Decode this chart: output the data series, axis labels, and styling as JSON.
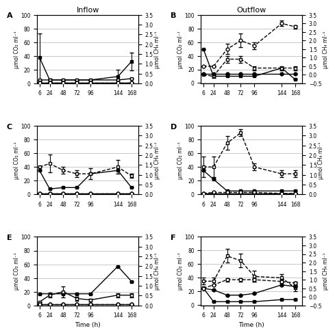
{
  "time": [
    6,
    24,
    48,
    72,
    96,
    144,
    168
  ],
  "panels": {
    "A": {
      "label": "A",
      "co2_on": [
        38,
        5,
        5,
        5,
        5,
        10,
        32
      ],
      "co2_on_err": [
        35,
        2,
        1,
        1,
        1,
        10,
        13
      ],
      "co2_off": [
        5,
        5,
        5,
        5,
        5,
        5,
        7
      ],
      "co2_off_err": [
        0,
        0,
        0,
        0,
        0,
        0,
        0
      ],
      "ch4_on": [
        0.05,
        0.05,
        0.05,
        0.05,
        0.05,
        0.05,
        0.05
      ],
      "ch4_on_err": [
        0,
        0,
        0,
        0,
        0,
        0,
        0
      ],
      "ch4_off": [
        0.05,
        0.05,
        0.05,
        0.05,
        0.05,
        0.05,
        0.05
      ],
      "ch4_off_err": [
        0,
        0,
        0,
        0,
        0,
        0,
        0
      ],
      "co2_on_dashed": false,
      "co2_off_dashed": false,
      "ylim_co2": [
        0,
        100
      ],
      "ylim_ch4": [
        0,
        3.5
      ],
      "yticks_co2": [
        0,
        20,
        40,
        60,
        80,
        100
      ],
      "yticks_ch4": [
        0,
        0.5,
        1.0,
        1.5,
        2.0,
        2.5,
        3.0,
        3.5
      ]
    },
    "B": {
      "label": "B",
      "co2_on": [
        50,
        10,
        10,
        10,
        10,
        22,
        5
      ],
      "co2_on_err": [
        0,
        0,
        0,
        0,
        0,
        0,
        0
      ],
      "co2_off": [
        12,
        10,
        35,
        35,
        22,
        22,
        22
      ],
      "co2_off_err": [
        0,
        3,
        5,
        5,
        3,
        3,
        3
      ],
      "ch4_on": [
        0.05,
        0.05,
        0.05,
        0.05,
        0.05,
        0.05,
        0.05
      ],
      "ch4_on_err": [
        0,
        0,
        0,
        0,
        0,
        0,
        0
      ],
      "ch4_off": [
        0.5,
        0.5,
        1.5,
        2.0,
        1.7,
        3.0,
        2.8
      ],
      "ch4_off_err": [
        0,
        0,
        0.3,
        0.4,
        0.2,
        0.15,
        0.1
      ],
      "co2_on_dashed": false,
      "co2_off_dashed": true,
      "ylim_co2": [
        -0.5,
        100
      ],
      "ylim_ch4": [
        -0.5,
        3.5
      ],
      "yticks_co2": [
        0,
        20,
        40,
        60,
        80,
        100
      ],
      "yticks_ch4": [
        -0.5,
        0,
        0.5,
        1.0,
        1.5,
        2.0,
        2.5,
        3.0,
        3.5
      ]
    },
    "C": {
      "label": "C",
      "co2_on": [
        35,
        8,
        10,
        10,
        30,
        35,
        10
      ],
      "co2_on_err": [
        0,
        0,
        0,
        0,
        0,
        0,
        0
      ],
      "co2_off": [
        40,
        45,
        35,
        30,
        30,
        40,
        27
      ],
      "co2_off_err": [
        0,
        13,
        5,
        5,
        8,
        10,
        3
      ],
      "ch4_on": [
        0.05,
        0.05,
        0.05,
        0.05,
        0.05,
        0.05,
        0.05
      ],
      "ch4_on_err": [
        0,
        0,
        0,
        0,
        0,
        0,
        0
      ],
      "ch4_off": [
        0.05,
        0.05,
        0.05,
        0.05,
        0.05,
        0.05,
        0.05
      ],
      "ch4_off_err": [
        0,
        0,
        0,
        0,
        0,
        0,
        0
      ],
      "co2_on_dashed": false,
      "co2_off_dashed": true,
      "ylim_co2": [
        0,
        100
      ],
      "ylim_ch4": [
        0,
        3.5
      ],
      "yticks_co2": [
        0,
        20,
        40,
        60,
        80,
        100
      ],
      "yticks_ch4": [
        0,
        0.5,
        1.0,
        1.5,
        2.0,
        2.5,
        3.0,
        3.5
      ]
    },
    "D": {
      "label": "D",
      "co2_on": [
        35,
        22,
        5,
        5,
        5,
        5,
        5
      ],
      "co2_on_err": [
        0,
        0,
        0,
        0,
        0,
        0,
        0
      ],
      "co2_off": [
        40,
        40,
        75,
        90,
        40,
        30,
        30
      ],
      "co2_off_err": [
        15,
        15,
        10,
        5,
        5,
        5,
        5
      ],
      "ch4_on": [
        0.05,
        0.05,
        0.05,
        0.05,
        0.05,
        0.05,
        0.05
      ],
      "ch4_on_err": [
        0,
        0,
        0,
        0,
        0,
        0,
        0
      ],
      "ch4_off": [
        0.05,
        0.1,
        0.1,
        0.1,
        0.1,
        0.05,
        0.05
      ],
      "ch4_off_err": [
        0,
        0,
        0,
        0,
        0,
        0,
        0
      ],
      "co2_on_dashed": false,
      "co2_off_dashed": true,
      "ylim_co2": [
        0,
        100
      ],
      "ylim_ch4": [
        0,
        3.5
      ],
      "yticks_co2": [
        0,
        20,
        40,
        60,
        80,
        100
      ],
      "yticks_ch4": [
        0,
        0.5,
        1.0,
        1.5,
        2.0,
        2.5,
        3.0,
        3.5
      ]
    },
    "E": {
      "label": "E",
      "co2_on": [
        17,
        17,
        17,
        17,
        17,
        57,
        35
      ],
      "co2_on_err": [
        0,
        0,
        0,
        0,
        0,
        0,
        0
      ],
      "co2_off": [
        5,
        15,
        20,
        10,
        8,
        15,
        15
      ],
      "co2_off_err": [
        0,
        3,
        8,
        3,
        2,
        3,
        3
      ],
      "ch4_on": [
        0.05,
        0.05,
        0.05,
        0.05,
        0.05,
        0.05,
        0.05
      ],
      "ch4_on_err": [
        0,
        0,
        0,
        0,
        0,
        0,
        0
      ],
      "ch4_off": [
        0.05,
        0.05,
        0.05,
        0.05,
        0.05,
        0.05,
        0.05
      ],
      "ch4_off_err": [
        0,
        0,
        0,
        0,
        0,
        0,
        0
      ],
      "co2_on_dashed": false,
      "co2_off_dashed": false,
      "ylim_co2": [
        0,
        100
      ],
      "ylim_ch4": [
        0,
        3.5
      ],
      "yticks_co2": [
        0,
        20,
        40,
        60,
        80,
        100
      ],
      "yticks_ch4": [
        0,
        0.5,
        1.0,
        1.5,
        2.0,
        2.5,
        3.0,
        3.5
      ]
    },
    "F": {
      "label": "F",
      "co2_on": [
        25,
        5,
        5,
        5,
        5,
        8,
        8
      ],
      "co2_on_err": [
        0,
        0,
        0,
        0,
        0,
        0,
        0
      ],
      "co2_off": [
        35,
        35,
        72,
        65,
        42,
        40,
        25
      ],
      "co2_off_err": [
        5,
        5,
        10,
        10,
        8,
        5,
        5
      ],
      "ch4_on": [
        0.5,
        0.4,
        0.1,
        0.1,
        0.2,
        0.7,
        0.6
      ],
      "ch4_on_err": [
        0,
        0,
        0,
        0,
        0,
        0,
        0
      ],
      "ch4_off": [
        0.5,
        0.7,
        1.0,
        1.0,
        1.0,
        0.9,
        0.8
      ],
      "ch4_off_err": [
        0,
        0,
        0.1,
        0.1,
        0.1,
        0.1,
        0.1
      ],
      "co2_on_dashed": false,
      "co2_off_dashed": true,
      "ylim_co2": [
        -0.5,
        100
      ],
      "ylim_ch4": [
        -0.5,
        3.5
      ],
      "yticks_co2": [
        0,
        20,
        40,
        60,
        80,
        100
      ],
      "yticks_ch4": [
        -0.5,
        0,
        0.5,
        1.0,
        1.5,
        2.0,
        2.5,
        3.0,
        3.5
      ]
    }
  },
  "col_titles": [
    "Inflow",
    "Outflow"
  ],
  "xlabel": "Time (h)",
  "ylabel_left": "μmol CO₂ ml⁻¹",
  "ylabel_right": "μmol CH₄ ml⁻¹"
}
